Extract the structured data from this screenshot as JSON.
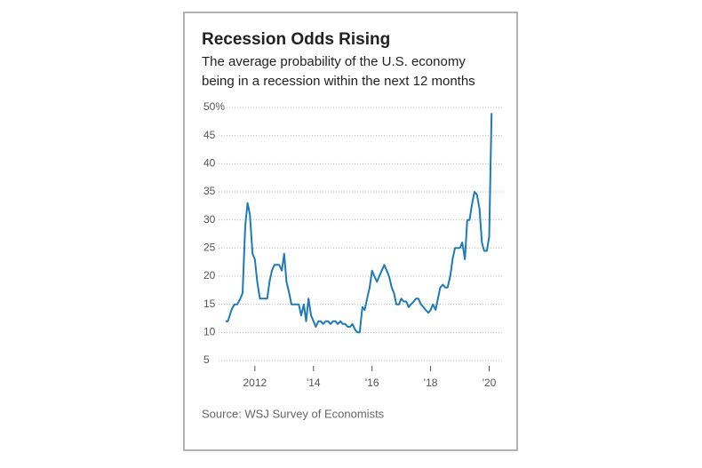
{
  "chart_data": {
    "type": "line",
    "title": "Recession Odds Rising",
    "subtitle": [
      "The average probability of the U.S. economy",
      "being in a recession within the next 12 months"
    ],
    "source": "Source: WSJ Survey of Economists",
    "color": "#1f7ab8",
    "grid": true,
    "xlim": [
      2010.7,
      2020.5
    ],
    "xticks": [
      2012,
      {
        "value": 2014,
        "label": "'14"
      },
      {
        "value": 2016,
        "label": "'16"
      },
      {
        "value": 2018,
        "label": "'18"
      },
      {
        "value": 2020,
        "label": "'20"
      }
    ],
    "ylim": [
      5,
      50
    ],
    "yticks": [
      5,
      10,
      15,
      20,
      25,
      30,
      35,
      40,
      45,
      {
        "value": 50,
        "label": "50%"
      }
    ],
    "x": [
      2011.0,
      2011.08,
      2011.2,
      2011.3,
      2011.4,
      2011.5,
      2011.58,
      2011.67,
      2011.75,
      2011.83,
      2011.92,
      2012.0,
      2012.08,
      2012.17,
      2012.25,
      2012.33,
      2012.42,
      2012.5,
      2012.58,
      2012.67,
      2012.75,
      2012.83,
      2012.92,
      2013.0,
      2013.08,
      2013.17,
      2013.25,
      2013.33,
      2013.42,
      2013.5,
      2013.58,
      2013.67,
      2013.75,
      2013.83,
      2013.92,
      2014.0,
      2014.08,
      2014.17,
      2014.25,
      2014.33,
      2014.42,
      2014.5,
      2014.58,
      2014.67,
      2014.75,
      2014.83,
      2014.92,
      2015.0,
      2015.08,
      2015.17,
      2015.25,
      2015.33,
      2015.42,
      2015.5,
      2015.58,
      2015.67,
      2015.75,
      2015.83,
      2015.92,
      2016.0,
      2016.08,
      2016.17,
      2016.25,
      2016.33,
      2016.42,
      2016.5,
      2016.58,
      2016.67,
      2016.75,
      2016.83,
      2016.92,
      2017.0,
      2017.08,
      2017.17,
      2017.25,
      2017.33,
      2017.42,
      2017.5,
      2017.58,
      2017.67,
      2017.75,
      2017.83,
      2017.92,
      2018.0,
      2018.08,
      2018.17,
      2018.25,
      2018.33,
      2018.42,
      2018.5,
      2018.58,
      2018.67,
      2018.75,
      2018.83,
      2018.92,
      2019.0,
      2019.08,
      2019.17,
      2019.25,
      2019.33,
      2019.42,
      2019.5,
      2019.58,
      2019.67,
      2019.75,
      2019.83,
      2019.92,
      2020.0,
      2020.08
    ],
    "values": [
      12,
      12,
      14,
      15,
      15,
      16,
      17,
      29,
      33,
      31,
      24,
      23,
      19,
      16,
      16,
      16,
      16,
      19,
      21,
      22,
      22,
      22,
      21,
      24,
      19,
      17,
      15,
      15,
      15,
      15,
      13,
      15,
      12,
      16,
      13,
      12,
      11,
      12,
      12,
      11.5,
      12,
      12,
      11.5,
      12,
      12,
      11.5,
      12,
      11.5,
      11.5,
      11,
      11,
      11.5,
      10.5,
      10,
      10,
      14.5,
      14,
      16,
      18,
      21,
      20,
      19,
      20,
      21,
      22,
      21,
      20,
      18,
      17,
      15,
      15,
      16,
      15.5,
      15.5,
      14.5,
      15,
      15.5,
      16,
      16,
      15,
      14.5,
      14,
      13.5,
      14,
      15,
      14,
      16,
      18,
      18.5,
      18,
      18,
      20,
      23,
      25,
      25,
      25,
      26,
      23,
      30,
      30,
      33,
      35,
      34.5,
      32,
      26,
      24.5,
      24.5,
      27,
      49
    ]
  }
}
